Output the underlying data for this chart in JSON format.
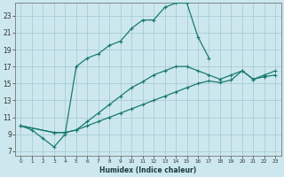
{
  "xlabel": "Humidex (Indice chaleur)",
  "bg_color": "#cce8ee",
  "grid_color": "#aaccd4",
  "line_color": "#1a7a6e",
  "xlim": [
    -0.5,
    23.5
  ],
  "ylim": [
    6.5,
    24.5
  ],
  "xticks": [
    0,
    1,
    2,
    3,
    4,
    5,
    6,
    7,
    8,
    9,
    10,
    11,
    12,
    13,
    14,
    15,
    16,
    17,
    18,
    19,
    20,
    21,
    22,
    23
  ],
  "yticks": [
    7,
    9,
    11,
    13,
    15,
    17,
    19,
    21,
    23
  ],
  "line1_x": [
    0,
    1,
    2,
    3,
    4,
    5,
    6,
    7,
    8,
    9,
    10,
    11,
    12,
    13,
    14,
    15,
    16,
    17
  ],
  "line1_y": [
    10.0,
    9.5,
    8.5,
    7.5,
    9.0,
    17.0,
    18.0,
    18.5,
    19.5,
    20.0,
    21.5,
    22.5,
    22.5,
    24.0,
    24.5,
    24.5,
    20.5,
    18.0
  ],
  "line2_x": [
    0,
    3,
    4,
    5,
    6,
    7,
    8,
    9,
    10,
    11,
    12,
    13,
    14,
    15,
    16,
    17,
    18,
    19,
    20,
    21,
    22,
    23
  ],
  "line2_y": [
    10.0,
    9.2,
    9.2,
    9.5,
    10.0,
    10.5,
    11.0,
    11.5,
    12.0,
    12.5,
    13.0,
    13.5,
    14.0,
    14.5,
    15.0,
    15.3,
    15.1,
    15.4,
    16.5,
    15.5,
    15.8,
    16.0
  ],
  "line3_x": [
    0,
    3,
    4,
    5,
    6,
    7,
    8,
    9,
    10,
    11,
    12,
    13,
    14,
    15,
    16,
    17,
    18,
    19,
    20,
    21,
    22,
    23
  ],
  "line3_y": [
    10.0,
    9.2,
    9.2,
    9.5,
    10.5,
    11.5,
    12.5,
    13.5,
    14.5,
    15.2,
    16.0,
    16.5,
    17.0,
    17.0,
    16.5,
    16.0,
    15.5,
    16.0,
    16.5,
    15.5,
    16.0,
    16.5
  ]
}
